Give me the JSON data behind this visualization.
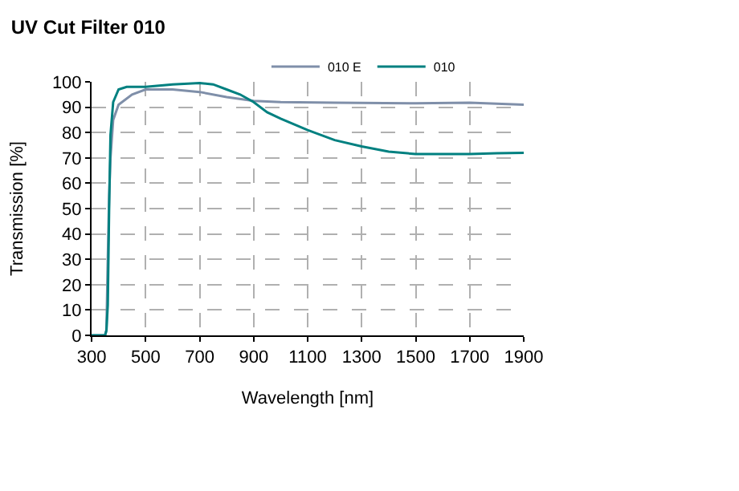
{
  "chart_data": {
    "type": "line",
    "title": "UV Cut Filter 010",
    "xlabel": "Wavelength [nm]",
    "ylabel": "Transmission [%]",
    "xlim": [
      300,
      1900
    ],
    "xticks": [
      300,
      500,
      700,
      900,
      1100,
      1300,
      1500,
      1700,
      1900
    ],
    "ylim": [
      0,
      100
    ],
    "yticks": [
      0,
      10,
      20,
      30,
      40,
      50,
      60,
      70,
      80,
      90,
      100
    ],
    "grid": true,
    "legend": "top",
    "marker": "none",
    "line_style": "solid",
    "series": [
      {
        "name": "010 E",
        "color": "#7f8fa9",
        "x": [
          300,
          350,
          355,
          360,
          365,
          370,
          380,
          400,
          450,
          500,
          600,
          700,
          800,
          900,
          1000,
          1200,
          1500,
          1700,
          1900
        ],
        "values": [
          0,
          0,
          2,
          30,
          55,
          70,
          85,
          91,
          95,
          97,
          97,
          96,
          94,
          92.5,
          92,
          91.8,
          91.5,
          91.8,
          91
        ]
      },
      {
        "name": "010",
        "color": "#008080",
        "x": [
          300,
          350,
          355,
          360,
          365,
          370,
          380,
          400,
          430,
          500,
          600,
          700,
          750,
          800,
          850,
          900,
          950,
          1000,
          1100,
          1200,
          1300,
          1400,
          1500,
          1600,
          1700,
          1800,
          1900
        ],
        "values": [
          0,
          0,
          2,
          12,
          50,
          79,
          92,
          97,
          98,
          98,
          99,
          99.5,
          99,
          97,
          95,
          92,
          88,
          85.5,
          81,
          77,
          74.5,
          72.5,
          71.5,
          71.5,
          71.5,
          71.8,
          72
        ]
      }
    ]
  }
}
